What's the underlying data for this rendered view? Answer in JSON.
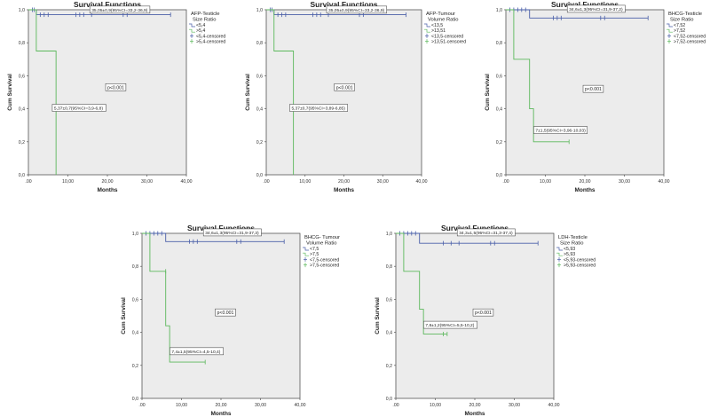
{
  "colors": {
    "blue": "#4a5fa8",
    "green": "#5cb85c",
    "plot_bg": "#ececec",
    "axis": "#555555"
  },
  "chart_data": [
    {
      "type": "line",
      "title": "Survival Functions",
      "xlabel": "Months",
      "ylabel": "Cum Survival",
      "xlim": [
        0,
        40
      ],
      "ylim": [
        0,
        1
      ],
      "x_ticks": [
        ".00",
        "10,00",
        "20,00",
        "30,00",
        "40,00"
      ],
      "y_ticks": [
        "0,0",
        "0,2",
        "0,4",
        "0,6",
        "0,8",
        "1,0"
      ],
      "legend_title": [
        "AFP-Testicle",
        "Size Ratio"
      ],
      "legend": [
        "<5,4",
        ">5,4",
        "<5,4-censored",
        ">5,4-censored"
      ],
      "p_label": "p<0.001",
      "p_pos": [
        20,
        0.52
      ],
      "series": [
        {
          "name": "<5,4",
          "color": "blue",
          "end": 36,
          "steps": [
            [
              0,
              1.0
            ],
            [
              2,
              0.97
            ]
          ],
          "censored": [
            [
              1,
              1.0
            ],
            [
              1.5,
              1.0
            ],
            [
              3,
              0.97
            ],
            [
              4,
              0.97
            ],
            [
              5,
              0.97
            ],
            [
              12,
              0.97
            ],
            [
              13,
              0.97
            ],
            [
              14,
              0.97
            ],
            [
              16,
              0.97
            ],
            [
              24,
              0.97
            ],
            [
              25,
              0.97
            ],
            [
              36,
              0.97
            ]
          ],
          "annotation": "35,05±0,9(95%CI=33,2-36,9)",
          "annot_pos": [
            16,
            0.99
          ]
        },
        {
          "name": ">5,4",
          "color": "green",
          "end": 7,
          "steps": [
            [
              0,
              1.0
            ],
            [
              2,
              0.75
            ],
            [
              7,
              0.0
            ]
          ],
          "censored": [
            [
              7,
              0.4
            ]
          ],
          "annotation": "5,37±0,7(95%CI=3,9-6,8)",
          "annot_pos": [
            6.5,
            0.395
          ]
        }
      ]
    },
    {
      "type": "line",
      "title": "Survival Functions",
      "xlabel": "Months",
      "ylabel": "Cum Survival",
      "xlim": [
        0,
        40
      ],
      "ylim": [
        0,
        1
      ],
      "x_ticks": [
        ".00",
        "10,00",
        "20,00",
        "30,00",
        "40,00"
      ],
      "y_ticks": [
        "0,0",
        "0,2",
        "0,4",
        "0,6",
        "0,8",
        "1,0"
      ],
      "legend_title": [
        "AFP-Tumour",
        "Volume Ratio"
      ],
      "legend": [
        "<13,5",
        ">13,51",
        "<13,5-censored",
        ">13,51-censored"
      ],
      "p_label": "p<0.001",
      "p_pos": [
        18,
        0.52
      ],
      "series": [
        {
          "name": "<13,5",
          "color": "blue",
          "end": 36,
          "steps": [
            [
              0,
              1.0
            ],
            [
              2,
              0.97
            ]
          ],
          "censored": [
            [
              1,
              1.0
            ],
            [
              1.5,
              1.0
            ],
            [
              3,
              0.97
            ],
            [
              4,
              0.97
            ],
            [
              5,
              0.97
            ],
            [
              12,
              0.97
            ],
            [
              13,
              0.97
            ],
            [
              14,
              0.97
            ],
            [
              16,
              0.97
            ],
            [
              24,
              0.97
            ],
            [
              25,
              0.97
            ],
            [
              36,
              0.97
            ]
          ],
          "annotation": "35,05±0,9(95%CI=33,2-36,9)",
          "annot_pos": [
            16,
            0.99
          ]
        },
        {
          "name": ">13,51",
          "color": "green",
          "end": 7,
          "steps": [
            [
              0,
              1.0
            ],
            [
              2,
              0.75
            ],
            [
              7,
              0.0
            ]
          ],
          "censored": [
            [
              7,
              0.4
            ]
          ],
          "annotation": "5,37±0,7(95%CI=3,89-6,85)",
          "annot_pos": [
            6.5,
            0.395
          ]
        }
      ]
    },
    {
      "type": "line",
      "title": "Survival Functions",
      "xlabel": "Months",
      "ylabel": "Cum Survival",
      "xlim": [
        0,
        40
      ],
      "ylim": [
        0,
        1
      ],
      "x_ticks": [
        ".00",
        "10,00",
        "20,00",
        "30,00",
        "40,00"
      ],
      "y_ticks": [
        "0,0",
        "0,2",
        "0,4",
        "0,6",
        "0,8",
        "1,0"
      ],
      "legend_title": [
        "BHCG-Testicle",
        "Size Ratio"
      ],
      "legend": [
        "<7,52",
        ">7,52",
        "<7,52-censored",
        ">7,52-censored"
      ],
      "p_label": "p<0.001",
      "p_pos": [
        20,
        0.51
      ],
      "series": [
        {
          "name": "<7,52",
          "color": "blue",
          "end": 36,
          "steps": [
            [
              0,
              1.0
            ],
            [
              6,
              0.95
            ]
          ],
          "censored": [
            [
              1,
              1.0
            ],
            [
              2,
              1.0
            ],
            [
              3,
              1.0
            ],
            [
              4,
              1.0
            ],
            [
              5,
              1.0
            ],
            [
              12,
              0.95
            ],
            [
              13,
              0.95
            ],
            [
              14,
              0.95
            ],
            [
              24,
              0.95
            ],
            [
              25,
              0.95
            ],
            [
              36,
              0.95
            ]
          ],
          "annotation": "34,6±1,3(95%CI=31,9-37,2)",
          "annot_pos": [
            16,
            0.995
          ]
        },
        {
          "name": ">7,52",
          "color": "green",
          "end": 16,
          "steps": [
            [
              0,
              1.0
            ],
            [
              2,
              0.7
            ],
            [
              6,
              0.4
            ],
            [
              7,
              0.2
            ]
          ],
          "censored": [
            [
              16,
              0.2
            ]
          ],
          "annotation": "7±1,5(95%CI=3,96-10,03)",
          "annot_pos": [
            7.5,
            0.26
          ]
        }
      ]
    },
    {
      "type": "line",
      "title": "Survival Functions",
      "xlabel": "Months",
      "ylabel": "Cum Survival",
      "xlim": [
        0,
        40
      ],
      "ylim": [
        0,
        1
      ],
      "x_ticks": [
        ".00",
        "10,00",
        "20,00",
        "30,00",
        "40,00"
      ],
      "y_ticks": [
        "0,0",
        "0,2",
        "0,4",
        "0,6",
        "0,8",
        "1,0"
      ],
      "legend_title": [
        "BHCG- Tumour",
        "Volume Ratio"
      ],
      "legend": [
        "<7,5",
        ">7,5",
        "<7,5-censored",
        ">7,5-censored"
      ],
      "p_label": "p<0.001",
      "p_pos": [
        19,
        0.51
      ],
      "series": [
        {
          "name": "<7,5",
          "color": "blue",
          "end": 36,
          "steps": [
            [
              0,
              1.0
            ],
            [
              6,
              0.95
            ]
          ],
          "censored": [
            [
              1,
              1.0
            ],
            [
              2,
              1.0
            ],
            [
              3,
              1.0
            ],
            [
              4,
              1.0
            ],
            [
              5,
              1.0
            ],
            [
              12,
              0.95
            ],
            [
              13,
              0.95
            ],
            [
              14,
              0.95
            ],
            [
              24,
              0.95
            ],
            [
              25,
              0.95
            ],
            [
              36,
              0.95
            ]
          ],
          "annotation": "34,6±1,3(95%CI=31,9-37,3)",
          "annot_pos": [
            16,
            0.995
          ]
        },
        {
          "name": ">7,5",
          "color": "green",
          "end": 16,
          "steps": [
            [
              0,
              1.0
            ],
            [
              2,
              0.77
            ],
            [
              6,
              0.44
            ],
            [
              7,
              0.22
            ]
          ],
          "censored": [
            [
              6,
              0.77
            ],
            [
              16,
              0.22
            ]
          ],
          "annotation": "7,4±1,5(95%CI=4,5-10,4)",
          "annot_pos": [
            7.5,
            0.275
          ]
        }
      ]
    },
    {
      "type": "line",
      "title": "Survival Functions",
      "xlabel": "Months",
      "ylabel": "Cum Survival",
      "xlim": [
        0,
        40
      ],
      "ylim": [
        0,
        1
      ],
      "x_ticks": [
        ".00",
        "10,00",
        "20,00",
        "30,00",
        "40,00"
      ],
      "y_ticks": [
        "0,0",
        "0,2",
        "0,4",
        "0,6",
        "0,8",
        "1,0"
      ],
      "legend_title": [
        "LDH-Testicle",
        "Size Ratio"
      ],
      "legend": [
        "<5,93",
        ">5,93",
        "<5,93-censored",
        ">5,93-censored"
      ],
      "p_label": "p<0.001",
      "p_pos": [
        20,
        0.51
      ],
      "series": [
        {
          "name": "<5,93",
          "color": "blue",
          "end": 36,
          "steps": [
            [
              0,
              1.0
            ],
            [
              6,
              0.94
            ]
          ],
          "censored": [
            [
              1,
              1.0
            ],
            [
              2,
              1.0
            ],
            [
              3,
              1.0
            ],
            [
              4,
              1.0
            ],
            [
              5,
              1.0
            ],
            [
              12,
              0.94
            ],
            [
              14,
              0.94
            ],
            [
              16,
              0.94
            ],
            [
              24,
              0.94
            ],
            [
              25,
              0.94
            ],
            [
              36,
              0.94
            ]
          ],
          "annotation": "34,3±1,5(95%CI=31,3-37,4)",
          "annot_pos": [
            16,
            0.995
          ]
        },
        {
          "name": ">5,93",
          "color": "green",
          "end": 13,
          "steps": [
            [
              0,
              1.0
            ],
            [
              2,
              0.77
            ],
            [
              6,
              0.54
            ],
            [
              7,
              0.39
            ]
          ],
          "censored": [
            [
              12,
              0.39
            ],
            [
              13,
              0.39
            ]
          ],
          "annotation": "7,8±1,2(95%CI=5,5-10,2)",
          "annot_pos": [
            7.5,
            0.435
          ]
        }
      ]
    }
  ]
}
